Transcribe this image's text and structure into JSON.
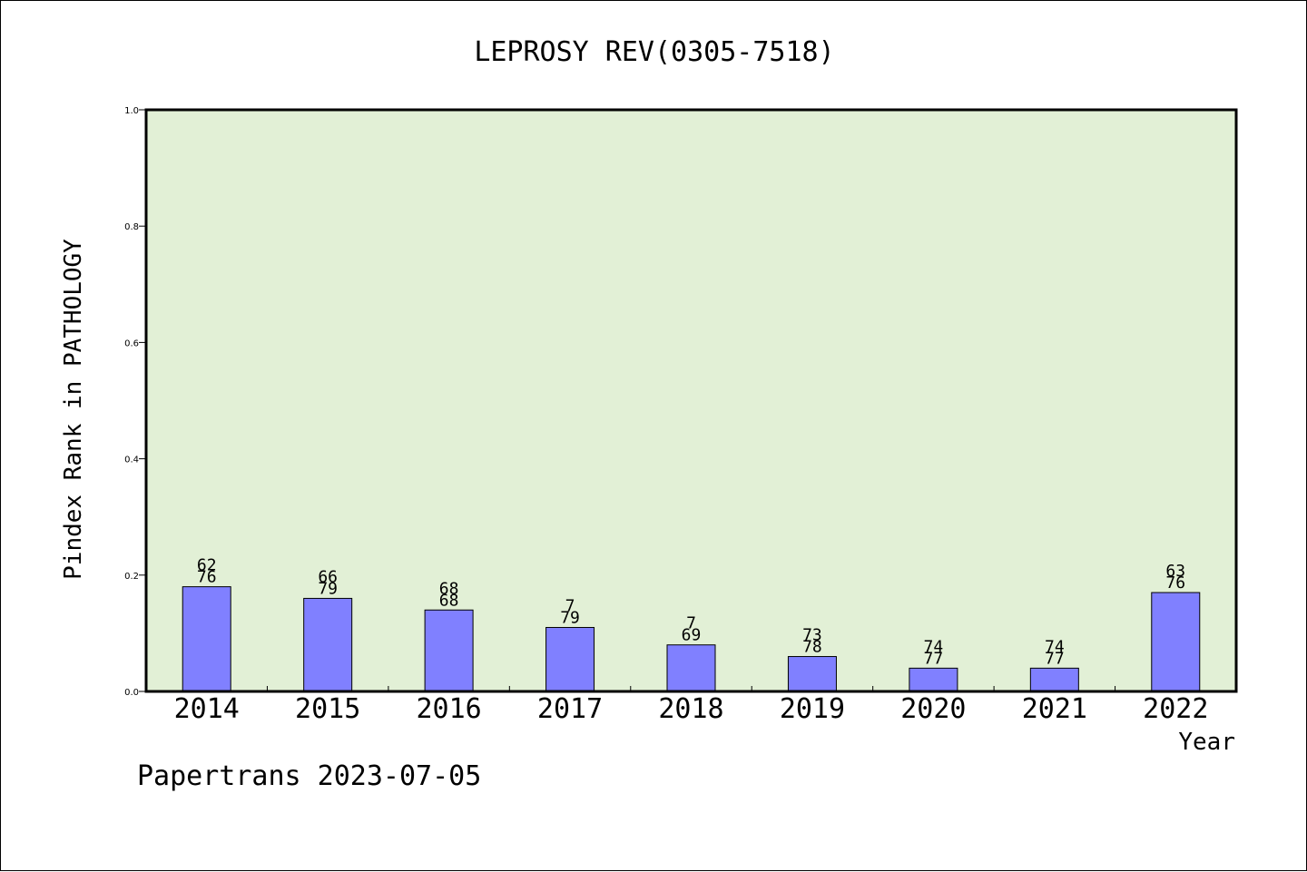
{
  "chart_data": {
    "type": "bar",
    "title": "LEPROSY REV(0305-7518)",
    "xlabel": "Year",
    "ylabel": "Pindex Rank in PATHOLOGY",
    "ylim": [
      0,
      1.0
    ],
    "yticks": [
      "0.0",
      "0.2",
      "0.4",
      "0.6",
      "0.8",
      "1.0"
    ],
    "categories": [
      "2014",
      "2015",
      "2016",
      "2017",
      "2018",
      "2019",
      "2020",
      "2021",
      "2022"
    ],
    "values": [
      0.18,
      0.16,
      0.14,
      0.11,
      0.08,
      0.06,
      0.04,
      0.04,
      0.17
    ],
    "labels_top": [
      "62",
      "66",
      "68",
      "7",
      "7",
      "73",
      "74",
      "74",
      "63"
    ],
    "labels_bottom": [
      "76",
      "79",
      "68",
      "79",
      "69",
      "78",
      "77",
      "77",
      "76"
    ],
    "grid": false,
    "colors": {
      "plot_background": "#e2f0d6",
      "bar_fill": "#8080ff",
      "bar_stroke": "#000000"
    }
  },
  "footer": {
    "credit": "Papertrans 2023-07-05"
  }
}
